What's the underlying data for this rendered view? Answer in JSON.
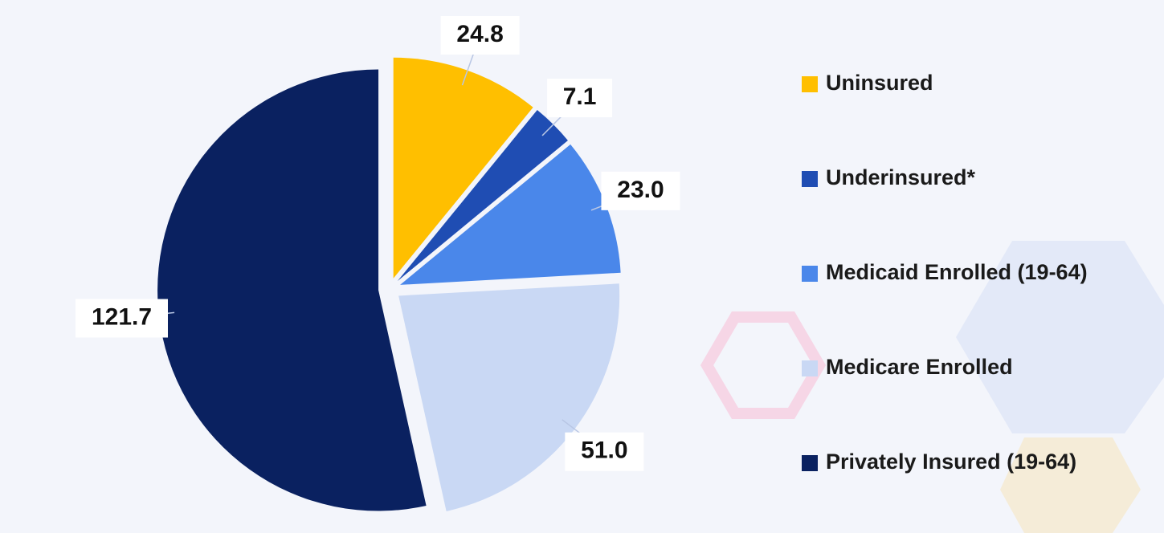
{
  "chart_data": {
    "type": "pie",
    "categories": [
      "Uninsured",
      "Underinsured*",
      "Medicaid Enrolled (19-64)",
      "Medicare Enrolled",
      "Privately Insured (19-64)"
    ],
    "values": [
      24.8,
      7.1,
      23.0,
      51.0,
      121.7
    ],
    "value_labels": [
      "24.8",
      "7.1",
      "23.0",
      "51.0",
      "121.7"
    ],
    "colors": [
      "#ffbf00",
      "#1f4db3",
      "#4a87ea",
      "#c9d8f4",
      "#0a2160"
    ]
  }
}
